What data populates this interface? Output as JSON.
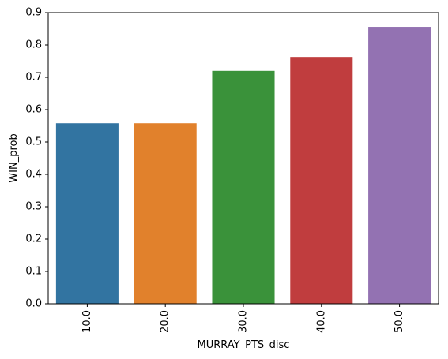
{
  "chart_data": {
    "type": "bar",
    "xlabel": "MURRAY_PTS_disc",
    "ylabel": "WIN_prob",
    "categories": [
      "10.0",
      "20.0",
      "30.0",
      "40.0",
      "50.0"
    ],
    "values": [
      0.558,
      0.558,
      0.72,
      0.763,
      0.856
    ],
    "colors": [
      "#3274a1",
      "#e1812c",
      "#3a923a",
      "#c03d3e",
      "#9372b2"
    ],
    "ylim": [
      0,
      0.9
    ],
    "yticks": [
      "0.0",
      "0.1",
      "0.2",
      "0.3",
      "0.4",
      "0.5",
      "0.6",
      "0.7",
      "0.8",
      "0.9"
    ],
    "grid": false,
    "legend": "none"
  }
}
